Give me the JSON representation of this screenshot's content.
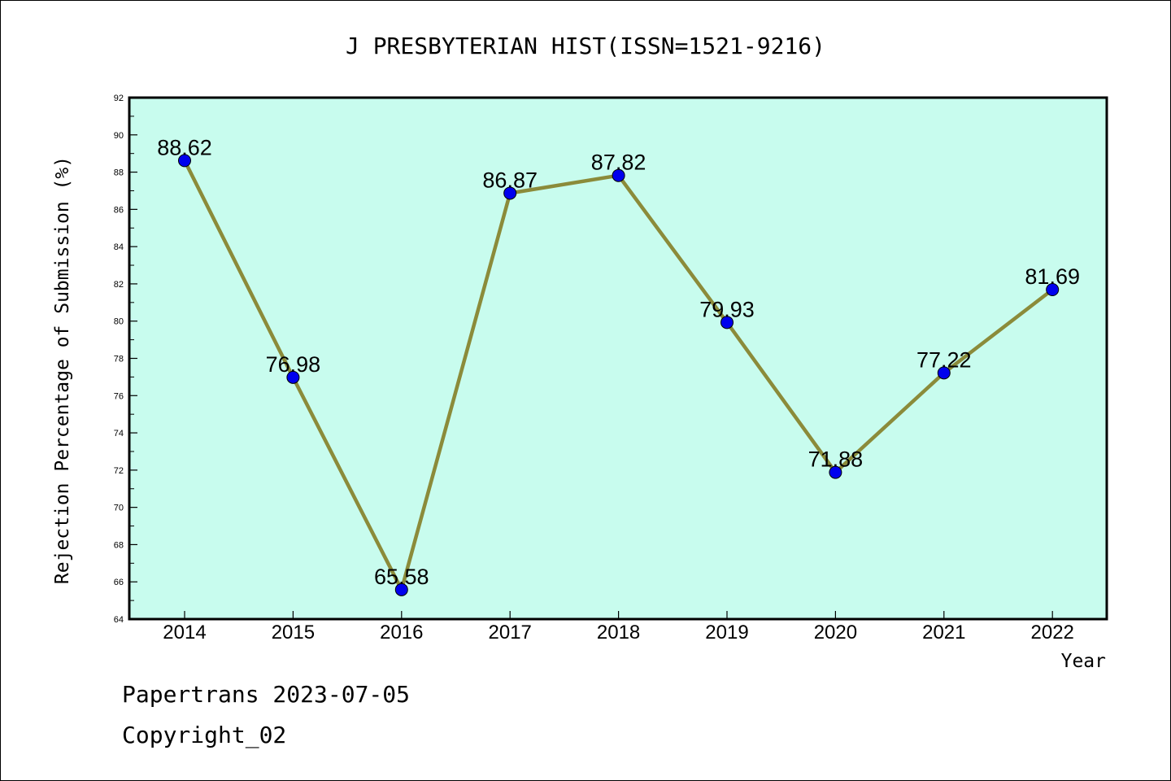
{
  "chart_data": {
    "type": "line",
    "title": "J PRESBYTERIAN HIST(ISSN=1521-9216)",
    "xlabel": "Year",
    "ylabel": "Rejection Percentage of Submission (%)",
    "categories": [
      "2014",
      "2015",
      "2016",
      "2017",
      "2018",
      "2019",
      "2020",
      "2021",
      "2022"
    ],
    "series": [
      {
        "values": [
          88.62,
          76.98,
          65.58,
          86.87,
          87.82,
          79.93,
          71.88,
          77.22,
          81.69
        ],
        "labels": [
          "88.62",
          "76.98",
          "65.58",
          "86.87",
          "87.82",
          "79.93",
          "71.88",
          "77.22",
          "81.69"
        ]
      }
    ],
    "ylim": [
      64,
      92
    ],
    "yticks": [
      "64",
      "66",
      "68",
      "70",
      "72",
      "74",
      "76",
      "78",
      "80",
      "82",
      "84",
      "86",
      "88",
      "90",
      "92"
    ],
    "grid": false,
    "colors": {
      "plot_background": "#c8fcee",
      "line": "#8b8b3a",
      "marker": "#0000ee"
    }
  },
  "footer": {
    "line1": "Papertrans 2023-07-05",
    "line2": "Copyright_02"
  }
}
